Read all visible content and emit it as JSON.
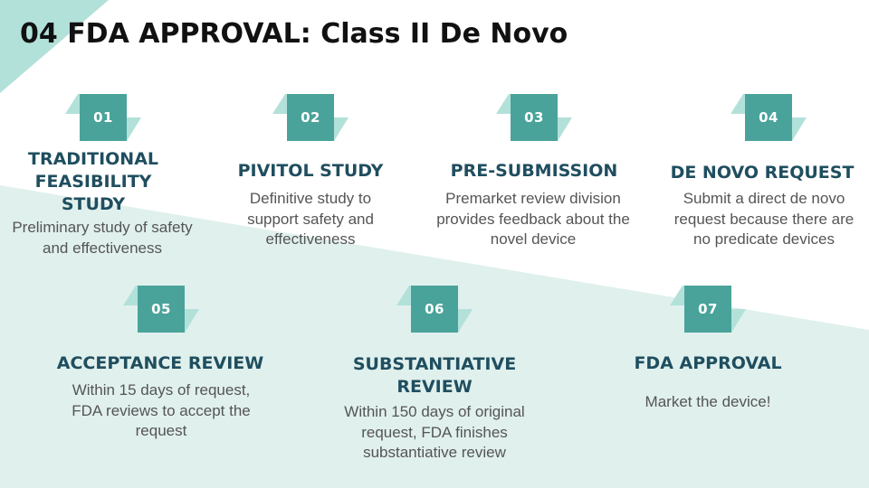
{
  "slide": {
    "title": "04 FDA APPROVAL: Class II De Novo",
    "colors": {
      "accent": "#4aa39a",
      "accent_light": "#b2e1da",
      "background_band": "#e0f0ed",
      "heading": "#1f4e5f",
      "body_text": "#555555"
    }
  },
  "steps": [
    {
      "number": "01",
      "title": "TRADITIONAL FEASIBILITY STUDY",
      "description": "Preliminary study of safety and effectiveness"
    },
    {
      "number": "02",
      "title": "PIVITOL STUDY",
      "description": "Definitive study to support safety and effectiveness"
    },
    {
      "number": "03",
      "title": "PRE-SUBMISSION",
      "description": "Premarket review division provides feedback about the novel device"
    },
    {
      "number": "04",
      "title": "DE NOVO REQUEST",
      "description": "Submit a direct de novo request because there are no predicate devices"
    },
    {
      "number": "05",
      "title": "ACCEPTANCE REVIEW",
      "description": "Within 15 days of request, FDA reviews to accept the request"
    },
    {
      "number": "06",
      "title": "SUBSTANTIATIVE REVIEW",
      "description": "Within 150 days of original request, FDA finishes substantiative review"
    },
    {
      "number": "07",
      "title": "FDA APPROVAL",
      "description": "Market the device!"
    }
  ]
}
